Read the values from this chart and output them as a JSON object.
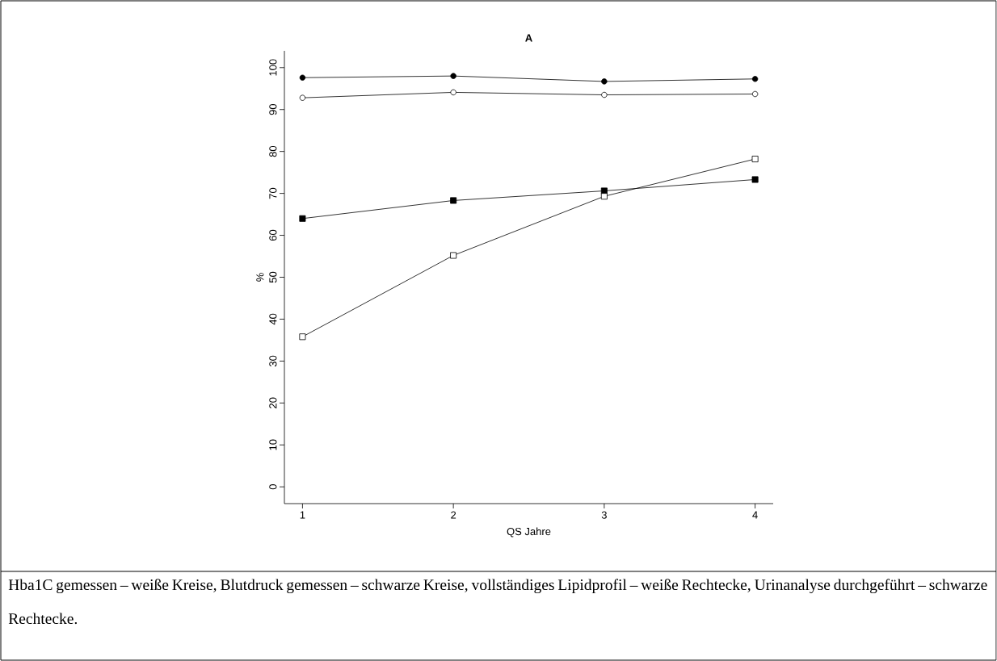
{
  "chart_data": {
    "type": "line",
    "title": "A",
    "xlabel": "QS Jahre",
    "ylabel": "%",
    "x": [
      1,
      2,
      3,
      4
    ],
    "series": [
      {
        "color": "#000000",
        "marker": "circle",
        "values": [
          97.6,
          98.0,
          96.7,
          97.3
        ]
      },
      {
        "color": "#000000",
        "marker": "circle_open",
        "values": [
          92.8,
          94.1,
          93.5,
          93.7
        ]
      },
      {
        "color": "#000000",
        "marker": "square",
        "values": [
          64.0,
          68.3,
          70.6,
          73.3
        ]
      },
      {
        "color": "#000000",
        "marker": "square_open",
        "values": [
          35.8,
          55.2,
          69.3,
          78.2
        ]
      }
    ],
    "xlim": [
      0.88,
      4.12
    ],
    "ylim": [
      -4,
      104
    ],
    "xticks": [
      1,
      2,
      3,
      4
    ],
    "yticks": [
      0,
      10,
      20,
      30,
      40,
      50,
      60,
      70,
      80,
      90,
      100
    ],
    "grid": false,
    "annotations": [
      "Hba1C gemessen – weiße Kreise, Blutdruck gemessen – schwarze Kreise, vollständiges Lipidprofil – weiße Rechtecke, Urinanalyse durchgeführt – schwarze Rechtecke."
    ]
  }
}
